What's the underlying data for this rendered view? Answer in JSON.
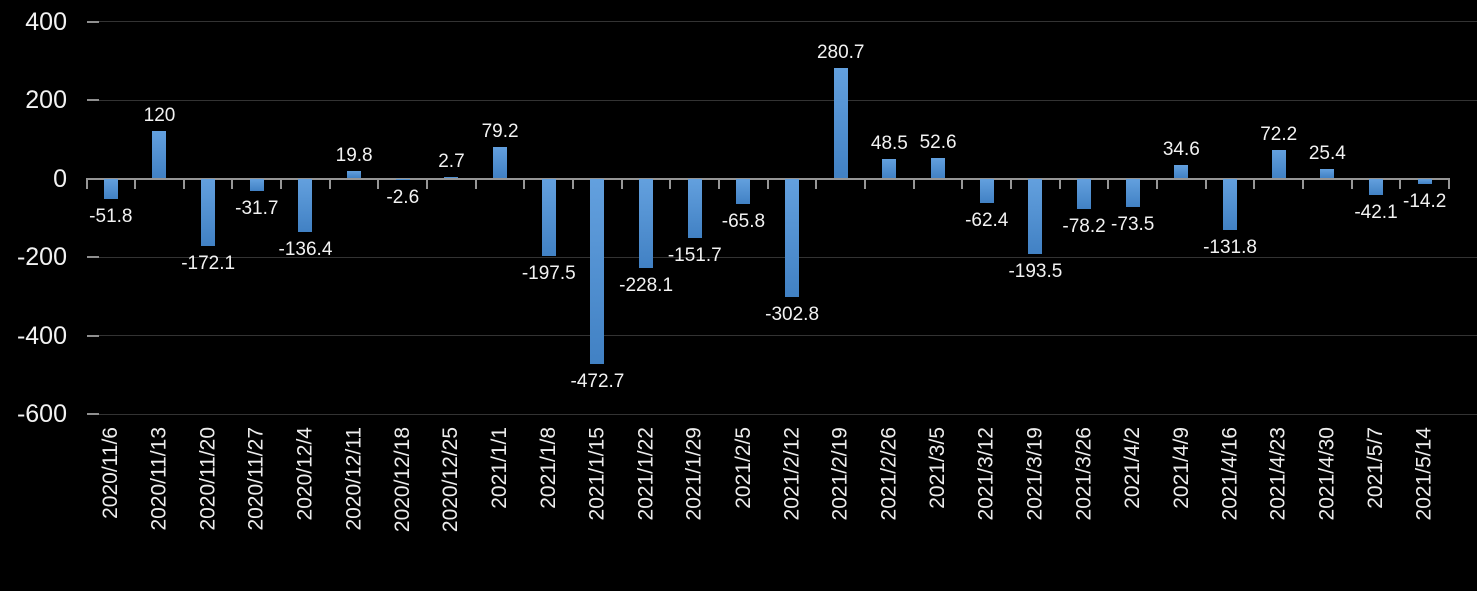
{
  "chart_data": {
    "type": "bar",
    "title": "",
    "xlabel": "",
    "ylabel": "",
    "legend": "none",
    "grid": true,
    "ylim": [
      -600,
      400
    ],
    "yticks": [
      400,
      200,
      0,
      -200,
      -400,
      -600
    ],
    "categories": [
      "2020/11/6",
      "2020/11/13",
      "2020/11/20",
      "2020/11/27",
      "2020/12/4",
      "2020/12/11",
      "2020/12/18",
      "2020/12/25",
      "2021/1/1",
      "2021/1/8",
      "2021/1/15",
      "2021/1/22",
      "2021/1/29",
      "2021/2/5",
      "2021/2/12",
      "2021/2/19",
      "2021/2/26",
      "2021/3/5",
      "2021/3/12",
      "2021/3/19",
      "2021/3/26",
      "2021/4/2",
      "2021/4/9",
      "2021/4/16",
      "2021/4/23",
      "2021/4/30",
      "2021/5/7",
      "2021/5/14"
    ],
    "values": [
      -51.8,
      120,
      -172.1,
      -31.7,
      -136.4,
      19.8,
      -2.6,
      2.7,
      79.2,
      -197.5,
      -472.7,
      -228.1,
      -151.7,
      -65.8,
      -302.8,
      280.7,
      48.5,
      52.6,
      -62.4,
      -193.5,
      -78.2,
      -73.5,
      34.6,
      -131.8,
      72.2,
      25.4,
      -42.1,
      -14.2
    ],
    "colors": {
      "background": "#000000",
      "bar_gradient_top": "#63a0de",
      "bar_gradient_bottom": "#4181c4",
      "gridline": "#333333",
      "axis": "#969696",
      "text": "#f2f2f2"
    }
  }
}
